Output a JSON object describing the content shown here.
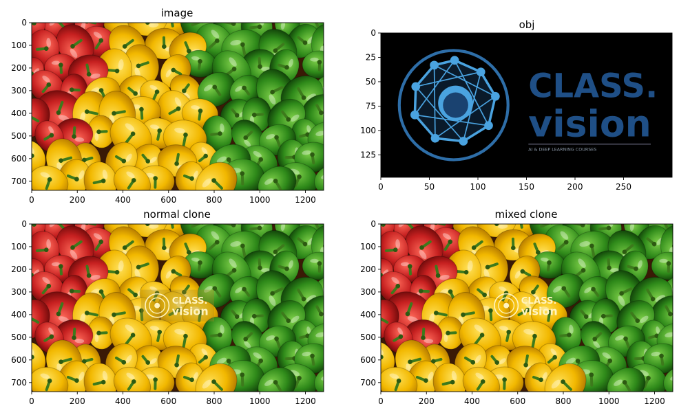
{
  "chart_data": [
    {
      "type": "image",
      "title": "image",
      "xlim": [
        0,
        1280
      ],
      "ylim": [
        740,
        0
      ],
      "xticks": [
        0,
        200,
        400,
        600,
        800,
        1000,
        1200
      ],
      "yticks": [
        0,
        100,
        200,
        300,
        400,
        500,
        600,
        700
      ],
      "content": "peppers",
      "overlay": "none"
    },
    {
      "type": "image",
      "title": "obj",
      "xlim": [
        0,
        300
      ],
      "ylim": [
        148,
        0
      ],
      "xticks": [
        0,
        50,
        100,
        150,
        200,
        250
      ],
      "yticks": [
        0,
        25,
        50,
        75,
        100,
        125
      ],
      "content": "logo",
      "logo_text": [
        "CLASS.",
        "vision"
      ],
      "logo_tagline": "AI & DEEP LEARNING COURSES",
      "overlay": "none"
    },
    {
      "type": "image",
      "title": "normal clone",
      "xlim": [
        0,
        1280
      ],
      "ylim": [
        740,
        0
      ],
      "xticks": [
        0,
        200,
        400,
        600,
        800,
        1000,
        1200
      ],
      "yticks": [
        0,
        100,
        200,
        300,
        400,
        500,
        600,
        700
      ],
      "content": "peppers",
      "overlay": "normal"
    },
    {
      "type": "image",
      "title": "mixed clone",
      "xlim": [
        0,
        1280
      ],
      "ylim": [
        740,
        0
      ],
      "xticks": [
        0,
        200,
        400,
        600,
        800,
        1000,
        1200
      ],
      "yticks": [
        0,
        100,
        200,
        300,
        400,
        500,
        600,
        700
      ],
      "content": "peppers",
      "overlay": "mixed"
    }
  ],
  "colors": {
    "red": "#c62020",
    "yellow": "#f2b800",
    "green": "#2f8a1a",
    "logo_blue": "#2e6ea8",
    "logo_light": "#4aa3e0"
  }
}
